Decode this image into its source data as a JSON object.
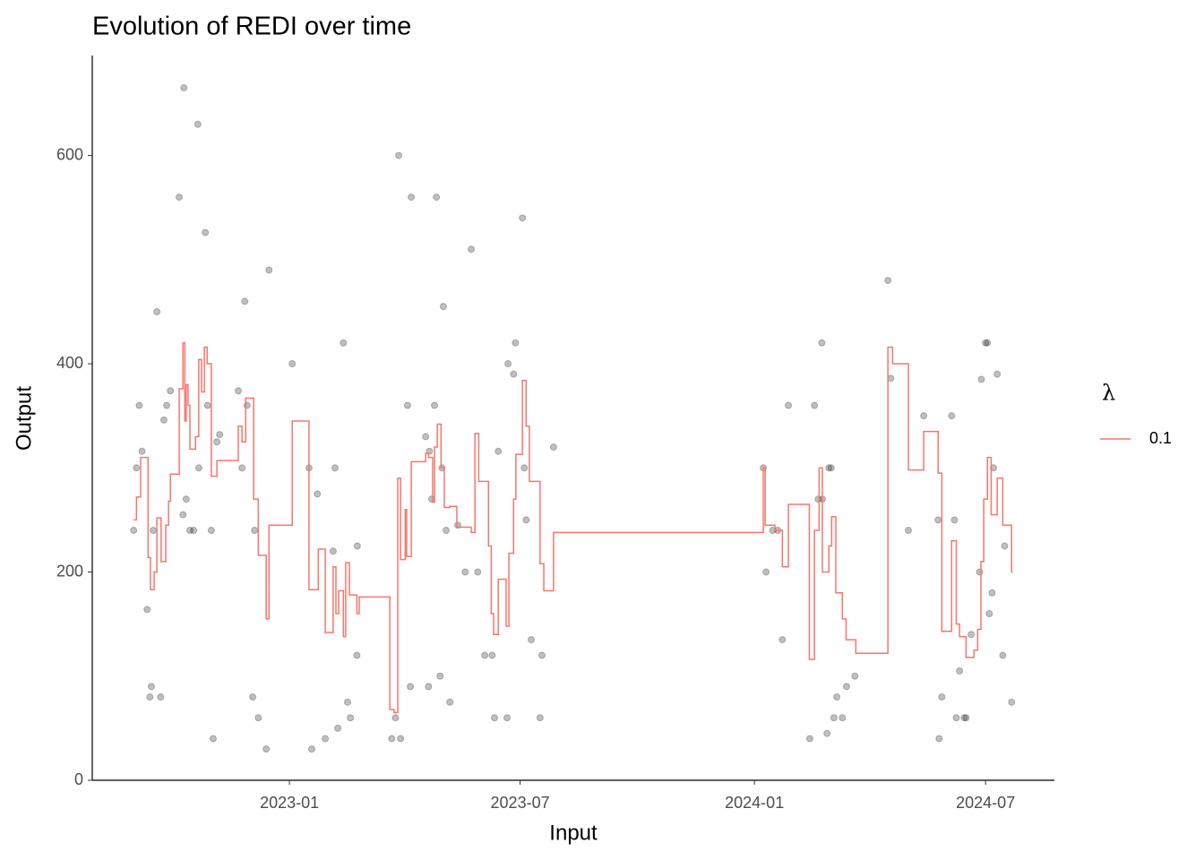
{
  "chart_data": {
    "type": "line",
    "title": "Evolution of REDI over time",
    "x_label": "Input",
    "y_label": "Output",
    "xlim": [
      2022.576,
      2024.645
    ],
    "xticks": [
      {
        "value": 2023,
        "label": "2023-01"
      },
      {
        "value": 2023.496,
        "label": "2023-07"
      },
      {
        "value": 2024,
        "label": "2024-01"
      },
      {
        "value": 2024.497,
        "label": "2024-07"
      }
    ],
    "ylim": [
      0,
      696
    ],
    "yticks": [
      0,
      200,
      400,
      600
    ],
    "grid": false,
    "step": true,
    "legend_title": "λ",
    "legend_position": "right",
    "points": {
      "color": "#000000",
      "alpha": 0.25,
      "x": [
        2022.665,
        2022.671,
        2022.677,
        2022.683,
        2022.694,
        2022.7,
        2022.703,
        2022.707,
        2022.715,
        2022.723,
        2022.73,
        2022.736,
        2022.744,
        2022.763,
        2022.771,
        2022.773,
        2022.778,
        2022.786,
        2022.794,
        2022.803,
        2022.805,
        2022.819,
        2022.824,
        2022.832,
        2022.836,
        2022.844,
        2022.85,
        2022.89,
        2022.898,
        2022.904,
        2022.909,
        2022.921,
        2022.925,
        2022.933,
        2022.95,
        2022.956,
        2023.006,
        2023.042,
        2023.048,
        2023.06,
        2023.077,
        2023.094,
        2023.098,
        2023.104,
        2023.116,
        2023.125,
        2023.131,
        2023.145,
        2023.146,
        2023.22,
        2023.228,
        2023.235,
        2023.239,
        2023.254,
        2023.26,
        2023.262,
        2023.293,
        2023.299,
        2023.301,
        2023.306,
        2023.312,
        2023.316,
        2023.324,
        2023.328,
        2023.331,
        2023.337,
        2023.345,
        2023.362,
        2023.378,
        2023.391,
        2023.405,
        2023.42,
        2023.436,
        2023.441,
        2023.449,
        2023.468,
        2023.47,
        2023.482,
        2023.486,
        2023.501,
        2023.505,
        2023.509,
        2023.52,
        2023.539,
        2023.543,
        2023.568,
        2024.019,
        2024.025,
        2024.039,
        2024.05,
        2024.06,
        2024.073,
        2024.119,
        2024.129,
        2024.137,
        2024.145,
        2024.146,
        2024.156,
        2024.16,
        2024.165,
        2024.171,
        2024.177,
        2024.189,
        2024.198,
        2024.216,
        2024.287,
        2024.293,
        2024.331,
        2024.364,
        2024.395,
        2024.397,
        2024.403,
        2024.424,
        2024.43,
        2024.434,
        2024.441,
        2024.451,
        2024.455,
        2024.466,
        2024.484,
        2024.488,
        2024.497,
        2024.501,
        2024.505,
        2024.511,
        2024.514,
        2024.522,
        2024.534,
        2024.538,
        2024.553
      ],
      "values": [
        240,
        300,
        360,
        316,
        164,
        80,
        90,
        240,
        450,
        80,
        346,
        360,
        374,
        560,
        255,
        665,
        270,
        240,
        240,
        630,
        300,
        526,
        360,
        240,
        40,
        325,
        332,
        374,
        300,
        460,
        360,
        80,
        240,
        60,
        30,
        490,
        400,
        300,
        30,
        275,
        40,
        220,
        300,
        50,
        420,
        75,
        60,
        120,
        225,
        40,
        60,
        600,
        40,
        360,
        90,
        560,
        330,
        90,
        316,
        270,
        360,
        560,
        100,
        300,
        455,
        240,
        75,
        245,
        200,
        510,
        200,
        120,
        120,
        60,
        316,
        60,
        400,
        390,
        420,
        540,
        300,
        250,
        135,
        60,
        120,
        320,
        300,
        200,
        240,
        240,
        135,
        360,
        40,
        360,
        270,
        420,
        270,
        45,
        300,
        300,
        60,
        80,
        60,
        90,
        100,
        480,
        386,
        240,
        350,
        250,
        40,
        80,
        350,
        250,
        60,
        105,
        60,
        60,
        140,
        200,
        385,
        420,
        420,
        160,
        180,
        300,
        390,
        120,
        225,
        75
      ]
    },
    "series": [
      {
        "name": "0.1",
        "color": "#F8766D",
        "x": [
          2022.665,
          2022.671,
          2022.68,
          2022.696,
          2022.701,
          2022.709,
          2022.715,
          2022.724,
          2022.734,
          2022.74,
          2022.744,
          2022.763,
          2022.771,
          2022.775,
          2022.778,
          2022.782,
          2022.786,
          2022.798,
          2022.805,
          2022.811,
          2022.817,
          2022.823,
          2022.832,
          2022.844,
          2022.89,
          2022.898,
          2022.906,
          2022.923,
          2022.933,
          2022.95,
          2022.956,
          2023.006,
          2023.042,
          2023.062,
          2023.077,
          2023.094,
          2023.1,
          2023.106,
          2023.116,
          2023.121,
          2023.129,
          2023.145,
          2023.15,
          2023.216,
          2023.225,
          2023.233,
          2023.239,
          2023.249,
          2023.252,
          2023.262,
          2023.293,
          2023.299,
          2023.308,
          2023.312,
          2023.318,
          2023.326,
          2023.333,
          2023.345,
          2023.36,
          2023.391,
          2023.399,
          2023.407,
          2023.428,
          2023.434,
          2023.439,
          2023.449,
          2023.466,
          2023.472,
          2023.482,
          2023.487,
          2023.501,
          2023.509,
          2023.516,
          2023.539,
          2023.547,
          2023.568,
          2024.019,
          2024.023,
          2024.044,
          2024.06,
          2024.073,
          2024.118,
          2024.129,
          2024.139,
          2024.146,
          2024.16,
          2024.166,
          2024.175,
          2024.189,
          2024.197,
          2024.218,
          2024.287,
          2024.297,
          2024.331,
          2024.364,
          2024.395,
          2024.403,
          2024.424,
          2024.434,
          2024.441,
          2024.455,
          2024.472,
          2024.48,
          2024.487,
          2024.493,
          2024.501,
          2024.509,
          2024.522,
          2024.534,
          2024.553,
          2024.555
        ],
        "values": [
          250,
          272,
          310,
          214,
          183,
          200,
          252,
          210,
          245,
          268,
          294,
          376,
          420,
          345,
          380,
          360,
          318,
          330,
          404,
          373,
          416,
          400,
          292,
          307,
          340,
          325,
          367,
          270,
          216,
          155,
          245,
          345,
          183,
          222,
          142,
          205,
          160,
          182,
          138,
          209,
          178,
          160,
          176,
          68,
          65,
          290,
          212,
          260,
          215,
          306,
          314,
          310,
          267,
          320,
          342,
          300,
          262,
          263,
          243,
          238,
          333,
          287,
          225,
          160,
          140,
          193,
          148,
          218,
          270,
          313,
          384,
          340,
          287,
          208,
          182,
          238,
          300,
          245,
          240,
          205,
          265,
          116,
          240,
          300,
          200,
          225,
          253,
          180,
          155,
          135,
          122,
          416,
          400,
          298,
          335,
          295,
          143,
          230,
          150,
          138,
          118,
          125,
          145,
          210,
          270,
          310,
          255,
          290,
          245,
          200,
          200
        ]
      }
    ]
  }
}
